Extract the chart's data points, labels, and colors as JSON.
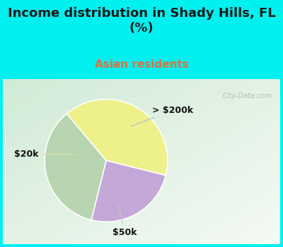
{
  "title": "Income distribution in Shady Hills, FL\n(%)",
  "subtitle": "Asian residents",
  "title_color": "#1a1a1a",
  "subtitle_color": "#e07040",
  "background_top": "#00f0f0",
  "watermark": "City-Data.com",
  "slices": [
    {
      "label": "$20k",
      "value": 40,
      "color": "#eef08a"
    },
    {
      "label": "> $200k",
      "value": 25,
      "color": "#c4a8d8"
    },
    {
      "label": "$50k",
      "value": 35,
      "color": "#b8d4b0"
    }
  ],
  "startangle": 90,
  "label_fontsize": 9,
  "title_fontsize": 13,
  "subtitle_fontsize": 11
}
